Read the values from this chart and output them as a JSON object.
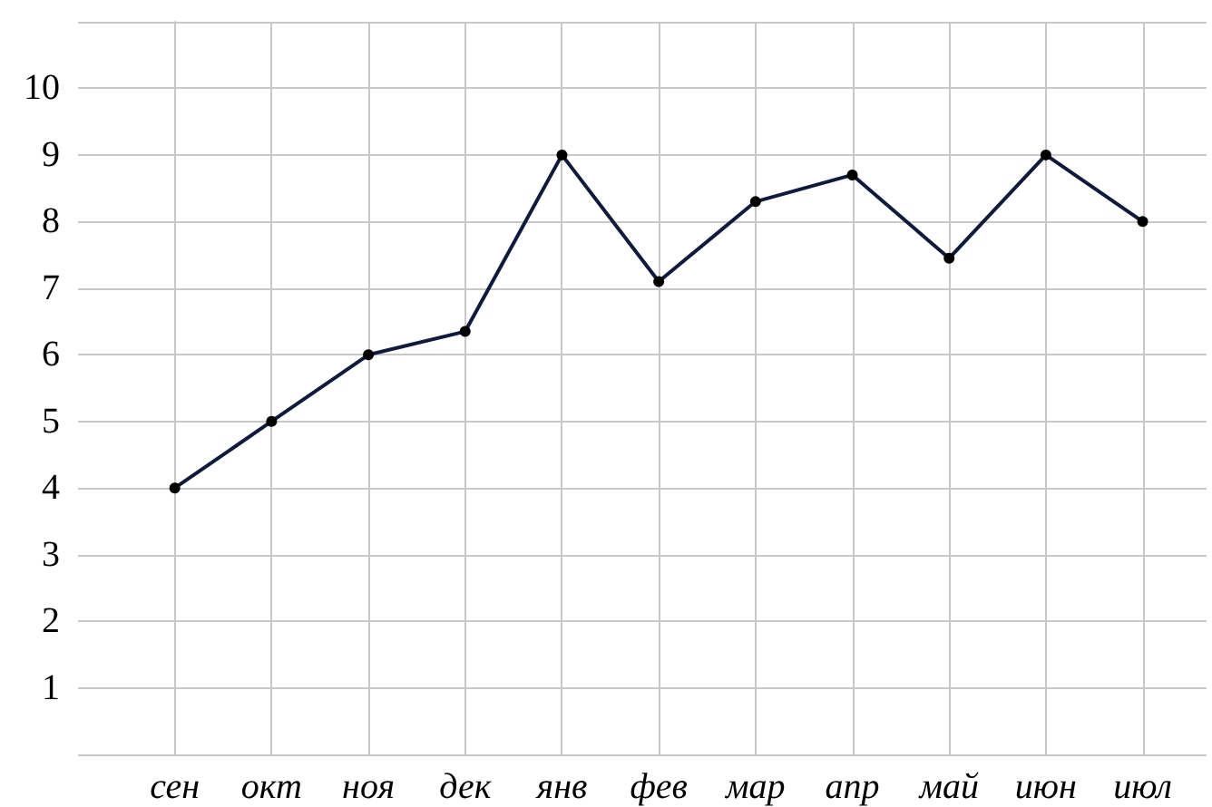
{
  "chart_data": {
    "type": "line",
    "categories": [
      "сен",
      "окт",
      "ноя",
      "дек",
      "янв",
      "фев",
      "мар",
      "апр",
      "май",
      "июн",
      "июл"
    ],
    "series": [
      {
        "color": "#0f1a3c",
        "values": [
          4,
          5,
          6,
          6.35,
          9,
          7.1,
          8.3,
          8.7,
          7.45,
          9,
          8
        ]
      }
    ],
    "ylim": [
      0,
      11
    ],
    "yticks": [
      {
        "value": 0,
        "label": null
      },
      1,
      2,
      3,
      4,
      5,
      6,
      7,
      8,
      9,
      10,
      {
        "value": 11,
        "label": null
      }
    ],
    "grid": true,
    "marker": "circle",
    "line_style": "solid"
  }
}
